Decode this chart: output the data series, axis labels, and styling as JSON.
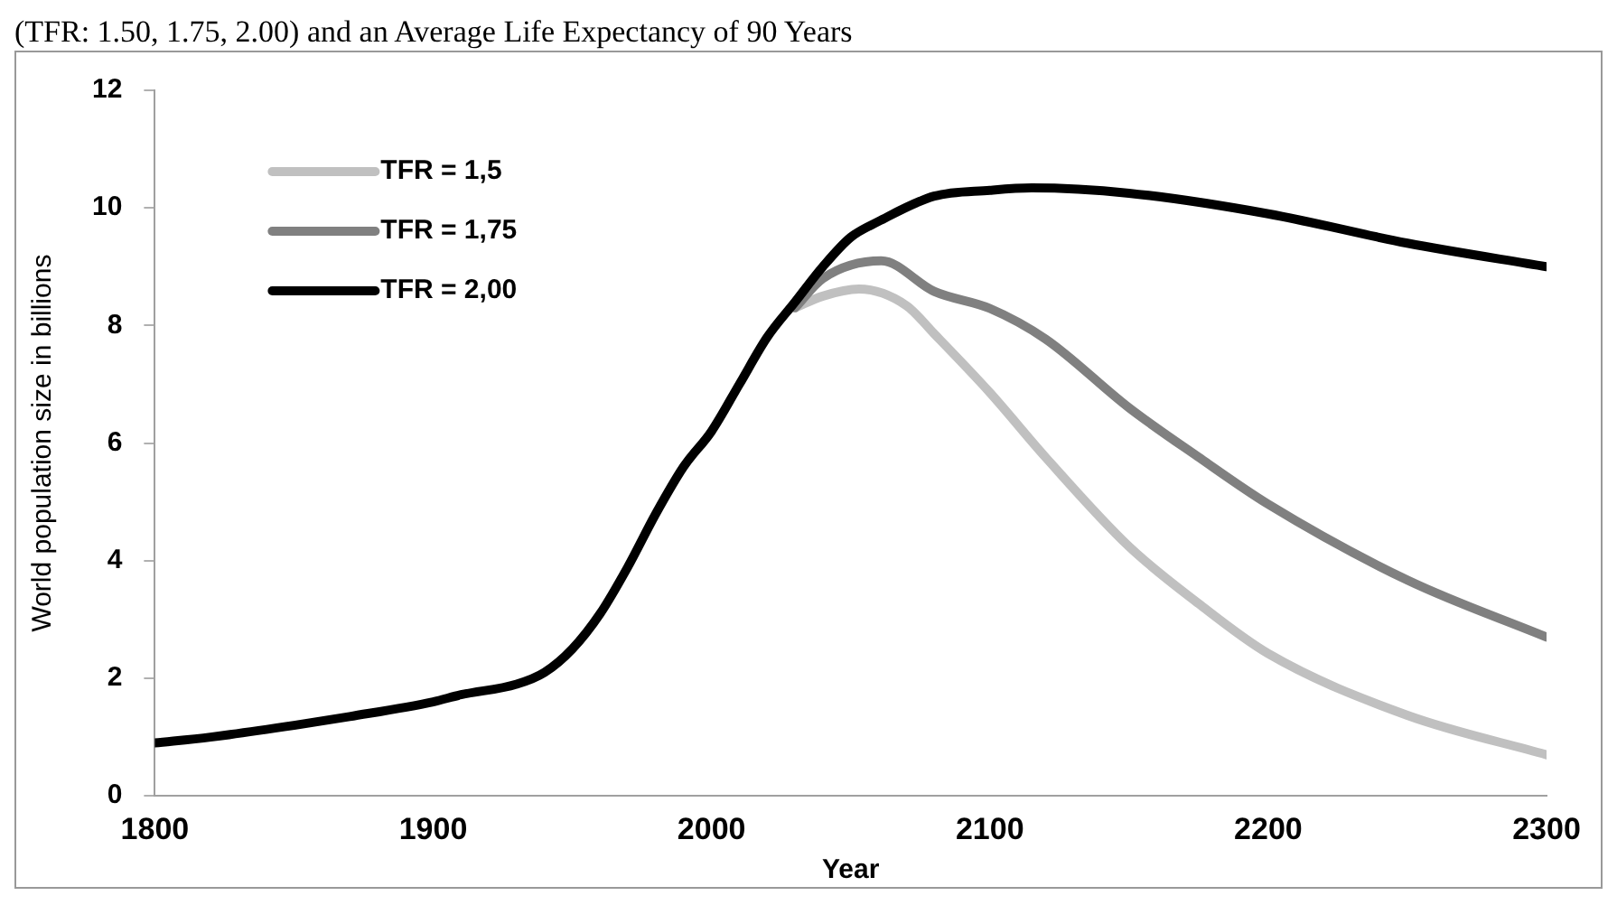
{
  "chart_data": {
    "type": "line",
    "title": "(TFR: 1.50, 1.75, 2.00) and an Average Life Expectancy of 90 Years",
    "xlabel": "Year",
    "ylabel": "World population size in billions",
    "xlim": [
      1800,
      2300
    ],
    "xticks": [
      1800,
      1900,
      2000,
      2100,
      2200,
      2300
    ],
    "ylim": [
      0,
      12
    ],
    "yticks": [
      0,
      2,
      4,
      6,
      8,
      10,
      12
    ],
    "grid": false,
    "legend": "top left",
    "marker": "none",
    "line_style": "solid",
    "series": [
      {
        "name": "TFR = 1,5",
        "color": "#c0c0c0",
        "x": [
          2030,
          2040,
          2053,
          2070,
          2080,
          2100,
          2120,
          2150,
          2175,
          2200,
          2250,
          2300
        ],
        "values": [
          8.3,
          8.5,
          8.62,
          8.34,
          7.86,
          6.86,
          5.76,
          4.24,
          3.27,
          2.42,
          1.37,
          0.7
        ]
      },
      {
        "name": "TFR = 1,75",
        "color": "#808080",
        "x": [
          2030,
          2040,
          2061,
          2080,
          2100,
          2120,
          2150,
          2175,
          2200,
          2250,
          2300
        ],
        "values": [
          8.3,
          8.8,
          9.1,
          8.58,
          8.29,
          7.77,
          6.6,
          5.76,
          4.96,
          3.67,
          2.7
        ]
      },
      {
        "name": "TFR = 2,00",
        "color": "#000000",
        "x": [
          1800,
          1820,
          1850,
          1870,
          1900,
          1910,
          1930,
          1940,
          1950,
          1960,
          1970,
          1980,
          1990,
          2000,
          2010,
          2020,
          2030,
          2040,
          2050,
          2060,
          2080,
          2100,
          2115,
          2150,
          2200,
          2250,
          2300
        ],
        "values": [
          0.9,
          1.0,
          1.2,
          1.35,
          1.6,
          1.72,
          1.9,
          2.1,
          2.5,
          3.1,
          3.9,
          4.8,
          5.6,
          6.2,
          7.0,
          7.8,
          8.4,
          9.0,
          9.5,
          9.77,
          10.2,
          10.3,
          10.34,
          10.25,
          9.9,
          9.4,
          9.0
        ]
      }
    ]
  }
}
